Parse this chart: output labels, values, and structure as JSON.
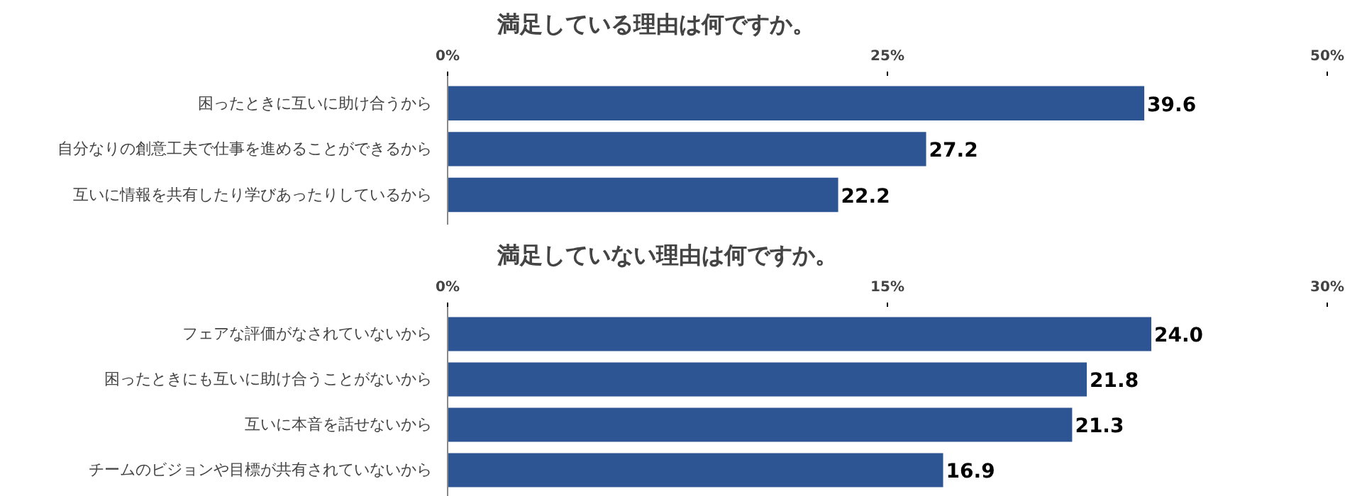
{
  "chart_data": [
    {
      "type": "bar",
      "orientation": "horizontal",
      "title": "満足している理由は何ですか。",
      "categories": [
        "困ったときに互いに助け合うから",
        "自分なりの創意工夫で仕事を進めることができるから",
        "互いに情報を共有したり学びあったりしているから"
      ],
      "values": [
        39.6,
        27.2,
        22.2
      ],
      "value_labels": [
        "39.6",
        "27.2",
        "22.2"
      ],
      "color": "#2e5593",
      "xlim": [
        0,
        50
      ],
      "xticks": [
        {
          "value": 0,
          "label": "0%"
        },
        {
          "value": 25,
          "label": "25%"
        },
        {
          "value": 50,
          "label": "50%"
        }
      ],
      "grid": false
    },
    {
      "type": "bar",
      "orientation": "horizontal",
      "title": "満足していない理由は何ですか。",
      "categories": [
        "フェアな評価がなされていないから",
        "困ったときにも互いに助け合うことがないから",
        "互いに本音を話せないから",
        "チームのビジョンや目標が共有されていないから"
      ],
      "values": [
        24.0,
        21.8,
        21.3,
        16.9
      ],
      "value_labels": [
        "24.0",
        "21.8",
        "21.3",
        "16.9"
      ],
      "color": "#2e5593",
      "xlim": [
        0,
        30
      ],
      "xticks": [
        {
          "value": 0,
          "label": "0%"
        },
        {
          "value": 15,
          "label": "15%"
        },
        {
          "value": 30,
          "label": "30%"
        }
      ],
      "grid": false
    }
  ]
}
